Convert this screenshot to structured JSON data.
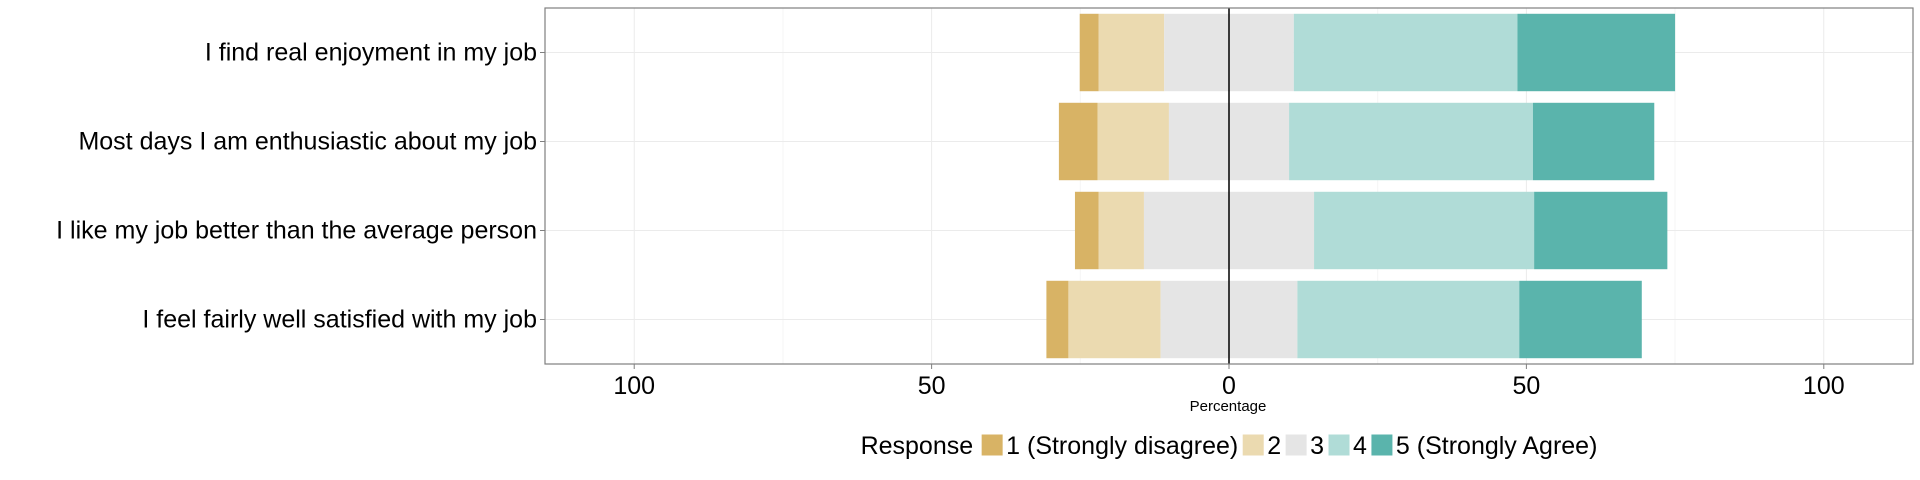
{
  "chart_data": {
    "type": "bar",
    "orientation": "horizontal",
    "stacked": "diverging",
    "xlabel": "Percentage",
    "ylabel": "",
    "xlim": [
      -115,
      115
    ],
    "xticks": [
      -100,
      -50,
      0,
      50,
      100
    ],
    "xtick_labels": [
      "100",
      "50",
      "0",
      "50",
      "100"
    ],
    "grid": true,
    "legend": {
      "title": "Response",
      "position": "bottom",
      "entries": [
        "1 (Strongly disagree)",
        "2",
        "3",
        "4",
        "5 (Strongly Agree)"
      ]
    },
    "colors": [
      "#d8b365",
      "#ebdab0",
      "#e5e5e5",
      "#b0dcd7",
      "#5ab4ac"
    ],
    "categories": [
      "I find real enjoyment in my job",
      "Most days I am enthusiastic about my job",
      "I like my job better than the average person",
      "I feel fairly well satisfied with my job"
    ],
    "series": [
      {
        "name": "1 (Strongly disagree)",
        "values": [
          3.2,
          6.5,
          4.0,
          3.7
        ]
      },
      {
        "name": "2",
        "values": [
          11.0,
          12.0,
          7.6,
          15.5
        ]
      },
      {
        "name": "3",
        "values": [
          21.8,
          20.2,
          28.6,
          23.0
        ]
      },
      {
        "name": "4",
        "values": [
          37.6,
          41.0,
          37.0,
          37.3
        ]
      },
      {
        "name": "5 (Strongly Agree)",
        "values": [
          26.5,
          20.4,
          22.4,
          20.6
        ]
      }
    ]
  }
}
